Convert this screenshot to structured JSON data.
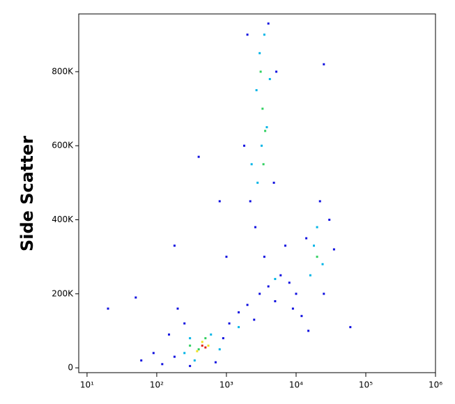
{
  "chart_data": {
    "type": "scatter",
    "y_label": "Side Scatter",
    "xscale": "log",
    "xlim": [
      7.6,
      1000000
    ],
    "ylim": [
      -13000,
      956000
    ],
    "xticks": [
      {
        "value": 10,
        "label": "10¹"
      },
      {
        "value": 100,
        "label": "10²"
      },
      {
        "value": 1000,
        "label": "10³"
      },
      {
        "value": 10000,
        "label": "10⁴"
      },
      {
        "value": 100000,
        "label": "10⁵"
      },
      {
        "value": 1000000,
        "label": "10⁶"
      }
    ],
    "yticks": [
      0,
      {
        "value": 200000,
        "label": "200K"
      },
      {
        "value": 400000,
        "label": "400K"
      },
      {
        "value": 600000,
        "label": "600K"
      },
      {
        "value": 800000,
        "label": "800K"
      }
    ],
    "series": [
      {
        "color": "#1010e0",
        "x": [
          60,
          90,
          120,
          150,
          180,
          250,
          300,
          700,
          900,
          1100,
          1500,
          2000,
          2500,
          3000,
          4000,
          5000,
          6000,
          8000,
          9000,
          12000,
          15000,
          25000,
          30000,
          2200,
          2600,
          1800,
          4800,
          5200,
          2000,
          4000,
          22000,
          35000,
          50,
          180,
          400,
          25000,
          60000,
          20,
          800,
          1000,
          3500,
          7000,
          10000,
          14000,
          200
        ],
        "values": [
          20000,
          40000,
          10000,
          90000,
          30000,
          120000,
          5000,
          15000,
          80000,
          120000,
          150000,
          170000,
          130000,
          200000,
          220000,
          180000,
          250000,
          230000,
          160000,
          140000,
          100000,
          200000,
          400000,
          450000,
          380000,
          600000,
          500000,
          800000,
          900000,
          930000,
          450000,
          320000,
          190000,
          330000,
          570000,
          820000,
          110000,
          160000,
          450000,
          300000,
          300000,
          330000,
          200000,
          350000,
          160000
        ]
      },
      {
        "color": "#00b4e6",
        "x": [
          250,
          300,
          600,
          800,
          350,
          2800,
          3200,
          3800,
          3000,
          3500,
          2700,
          4200,
          16000,
          20000,
          24000,
          18000,
          1500,
          5000,
          2300
        ],
        "values": [
          40000,
          80000,
          90000,
          50000,
          20000,
          500000,
          600000,
          650000,
          850000,
          900000,
          750000,
          780000,
          250000,
          380000,
          280000,
          330000,
          110000,
          240000,
          550000
        ]
      },
      {
        "color": "#30d060",
        "x": [
          400,
          500,
          300,
          3300,
          3100,
          3600,
          20000,
          3400
        ],
        "values": [
          50000,
          80000,
          60000,
          700000,
          800000,
          640000,
          300000,
          550000
        ]
      },
      {
        "color": "#f0e020",
        "x": [
          450,
          380,
          550
        ],
        "values": [
          70000,
          45000,
          60000
        ]
      },
      {
        "color": "#e02010",
        "x": [
          450,
          500
        ],
        "values": [
          60000,
          55000
        ]
      }
    ]
  }
}
